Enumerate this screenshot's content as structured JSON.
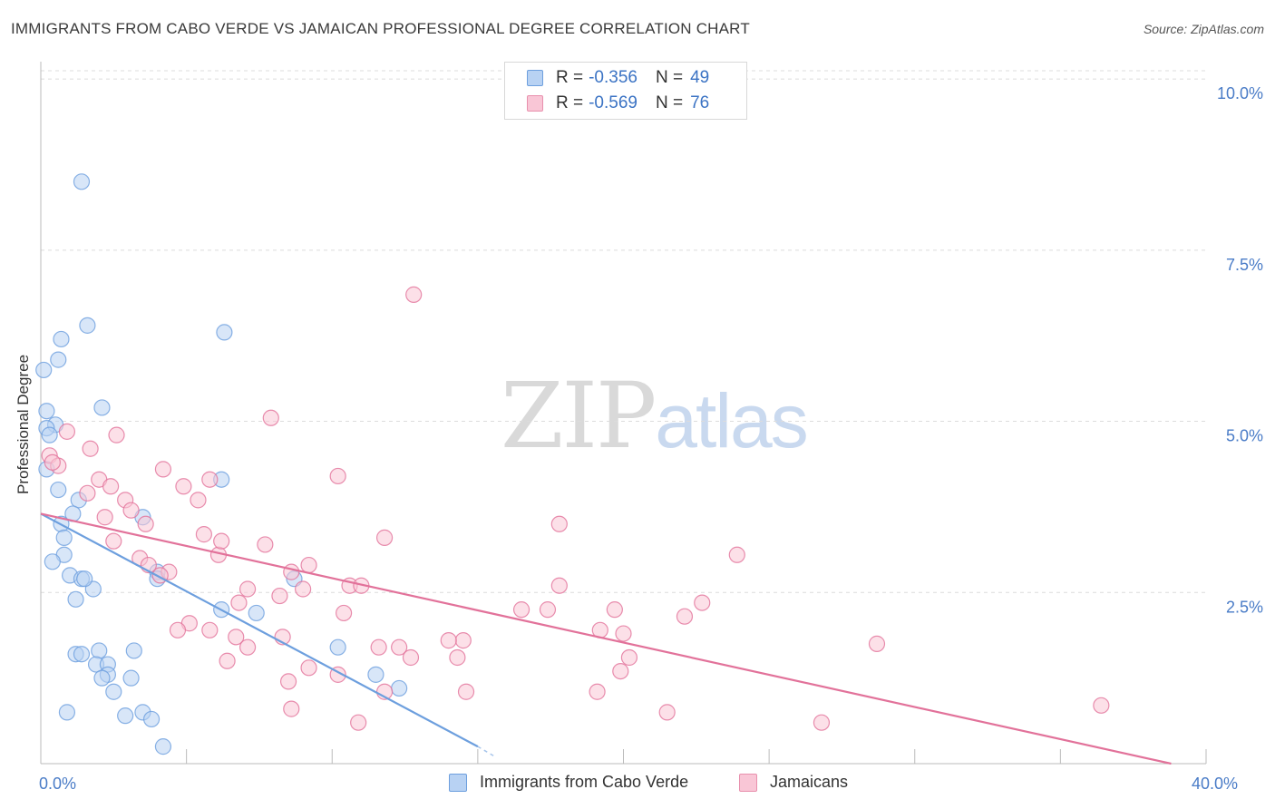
{
  "title": "IMMIGRANTS FROM CABO VERDE VS JAMAICAN PROFESSIONAL DEGREE CORRELATION CHART",
  "source": "Source: ZipAtlas.com",
  "watermark": {
    "zip": "ZIP",
    "atlas": "atlas"
  },
  "legend": {
    "rows": [
      {
        "r_label": "R =",
        "r_value": "-0.356",
        "n_label": "N =",
        "n_value": "49",
        "fill": "#b8d2f3",
        "stroke": "#6d9fde"
      },
      {
        "r_label": "R =",
        "r_value": "-0.569",
        "n_label": "N =",
        "n_value": "76",
        "fill": "#f9c6d6",
        "stroke": "#e890ad"
      }
    ]
  },
  "bottom_legend": [
    {
      "label": "Immigrants from Cabo Verde",
      "fill": "#b8d2f3",
      "stroke": "#6d9fde"
    },
    {
      "label": "Jamaicans",
      "fill": "#f9c6d6",
      "stroke": "#e890ad"
    }
  ],
  "chart_data": {
    "type": "scatter",
    "title": "IMMIGRANTS FROM CABO VERDE VS JAMAICAN PROFESSIONAL DEGREE CORRELATION CHART",
    "xlabel": "",
    "ylabel": "Professional Degree",
    "xlim": [
      0,
      40
    ],
    "ylim": [
      0,
      10.2
    ],
    "x_tick_labels": [
      {
        "value": 0,
        "label": "0.0%"
      },
      {
        "value": 40,
        "label": "40.0%"
      }
    ],
    "y_tick_labels": [
      {
        "value": 2.5,
        "label": "2.5%"
      },
      {
        "value": 5.0,
        "label": "5.0%"
      },
      {
        "value": 7.5,
        "label": "7.5%"
      },
      {
        "value": 10.0,
        "label": "10.0%"
      }
    ],
    "grid": true,
    "legend_position": "top-center",
    "series": [
      {
        "name": "Immigrants from Cabo Verde",
        "color": "#6d9fde",
        "fill": "#b8d2f3",
        "trend": {
          "x": [
            0,
            15
          ],
          "y": [
            3.65,
            0.25
          ],
          "dashed_to": [
            15.6,
            0.1
          ]
        },
        "points": [
          [
            1.4,
            8.5
          ],
          [
            1.6,
            6.4
          ],
          [
            0.7,
            6.2
          ],
          [
            0.6,
            5.9
          ],
          [
            0.1,
            5.75
          ],
          [
            0.2,
            5.15
          ],
          [
            2.1,
            5.2
          ],
          [
            0.5,
            4.95
          ],
          [
            0.2,
            4.9
          ],
          [
            0.3,
            4.8
          ],
          [
            0.2,
            4.3
          ],
          [
            0.6,
            4.0
          ],
          [
            1.3,
            3.85
          ],
          [
            1.1,
            3.65
          ],
          [
            0.7,
            3.5
          ],
          [
            0.8,
            3.3
          ],
          [
            0.8,
            3.05
          ],
          [
            0.4,
            2.95
          ],
          [
            1.0,
            2.75
          ],
          [
            1.4,
            2.7
          ],
          [
            1.8,
            2.55
          ],
          [
            1.2,
            2.4
          ],
          [
            3.5,
            3.6
          ],
          [
            4.0,
            2.8
          ],
          [
            4.0,
            2.7
          ],
          [
            6.2,
            4.15
          ],
          [
            6.3,
            6.3
          ],
          [
            7.4,
            2.2
          ],
          [
            8.7,
            2.7
          ],
          [
            6.2,
            2.25
          ],
          [
            1.2,
            1.6
          ],
          [
            1.4,
            1.6
          ],
          [
            2.0,
            1.65
          ],
          [
            3.2,
            1.65
          ],
          [
            1.9,
            1.45
          ],
          [
            2.3,
            1.45
          ],
          [
            2.3,
            1.3
          ],
          [
            2.1,
            1.25
          ],
          [
            3.1,
            1.25
          ],
          [
            2.5,
            1.05
          ],
          [
            0.9,
            0.75
          ],
          [
            2.9,
            0.7
          ],
          [
            3.5,
            0.75
          ],
          [
            3.8,
            0.65
          ],
          [
            4.2,
            0.25
          ],
          [
            10.2,
            1.7
          ],
          [
            11.5,
            1.3
          ],
          [
            12.3,
            1.1
          ],
          [
            1.5,
            2.7
          ]
        ]
      },
      {
        "name": "Jamaicans",
        "color": "#e2729a",
        "fill": "#f9c6d6",
        "trend": {
          "x": [
            0,
            38.8
          ],
          "y": [
            3.65,
            0.0
          ]
        },
        "points": [
          [
            0.3,
            4.5
          ],
          [
            0.6,
            4.35
          ],
          [
            0.9,
            4.85
          ],
          [
            1.7,
            4.6
          ],
          [
            2.6,
            4.8
          ],
          [
            0.4,
            4.4
          ],
          [
            2.0,
            4.15
          ],
          [
            2.4,
            4.05
          ],
          [
            1.6,
            3.95
          ],
          [
            2.9,
            3.85
          ],
          [
            3.1,
            3.7
          ],
          [
            3.6,
            3.5
          ],
          [
            2.2,
            3.6
          ],
          [
            2.5,
            3.25
          ],
          [
            4.2,
            4.3
          ],
          [
            4.9,
            4.05
          ],
          [
            5.4,
            3.85
          ],
          [
            5.8,
            4.15
          ],
          [
            5.6,
            3.35
          ],
          [
            6.1,
            3.05
          ],
          [
            6.2,
            3.25
          ],
          [
            7.7,
            3.2
          ],
          [
            7.9,
            5.05
          ],
          [
            10.2,
            4.2
          ],
          [
            12.8,
            6.85
          ],
          [
            11.8,
            3.3
          ],
          [
            17.8,
            3.5
          ],
          [
            3.4,
            3.0
          ],
          [
            3.7,
            2.9
          ],
          [
            4.4,
            2.8
          ],
          [
            8.6,
            2.8
          ],
          [
            9.2,
            2.9
          ],
          [
            8.2,
            2.45
          ],
          [
            9.0,
            2.55
          ],
          [
            7.1,
            2.55
          ],
          [
            6.8,
            2.35
          ],
          [
            10.6,
            2.6
          ],
          [
            11.0,
            2.6
          ],
          [
            17.8,
            2.6
          ],
          [
            16.5,
            2.25
          ],
          [
            17.4,
            2.25
          ],
          [
            19.7,
            2.25
          ],
          [
            23.9,
            3.05
          ],
          [
            22.7,
            2.35
          ],
          [
            22.1,
            2.15
          ],
          [
            10.4,
            2.2
          ],
          [
            5.1,
            2.05
          ],
          [
            4.7,
            1.95
          ],
          [
            6.7,
            1.85
          ],
          [
            8.3,
            1.85
          ],
          [
            7.1,
            1.7
          ],
          [
            11.6,
            1.7
          ],
          [
            12.3,
            1.7
          ],
          [
            12.7,
            1.55
          ],
          [
            14.5,
            1.8
          ],
          [
            14.0,
            1.8
          ],
          [
            14.3,
            1.55
          ],
          [
            19.2,
            1.95
          ],
          [
            20.0,
            1.9
          ],
          [
            20.2,
            1.55
          ],
          [
            28.7,
            1.75
          ],
          [
            6.4,
            1.5
          ],
          [
            8.5,
            1.2
          ],
          [
            9.2,
            1.4
          ],
          [
            10.2,
            1.3
          ],
          [
            11.8,
            1.05
          ],
          [
            14.6,
            1.05
          ],
          [
            19.1,
            1.05
          ],
          [
            19.9,
            1.35
          ],
          [
            8.6,
            0.8
          ],
          [
            10.9,
            0.6
          ],
          [
            21.5,
            0.75
          ],
          [
            26.8,
            0.6
          ],
          [
            36.4,
            0.85
          ],
          [
            5.8,
            1.95
          ],
          [
            4.1,
            2.75
          ]
        ]
      }
    ]
  }
}
